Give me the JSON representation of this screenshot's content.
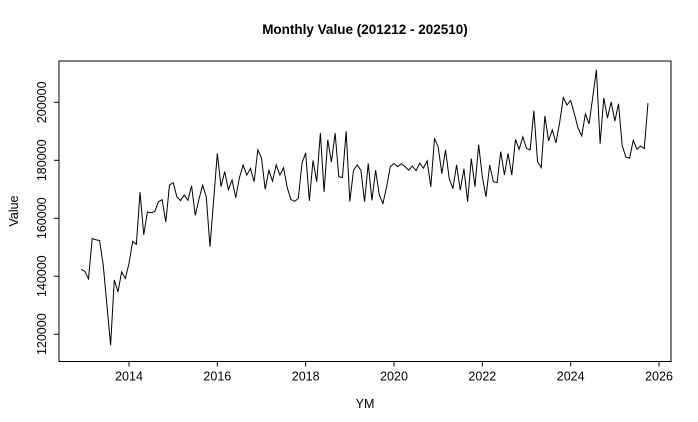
{
  "chart_data": {
    "type": "line",
    "title": "Monthly Value (201212 - 202510)",
    "xlabel": "YM",
    "ylabel": "Value",
    "start_ym": "201212",
    "end_ym": "202510",
    "x_ticks": [
      "2014",
      "2016",
      "2018",
      "2020",
      "2022",
      "2024",
      "2026"
    ],
    "y_ticks": [
      "120000",
      "140000",
      "160000",
      "180000",
      "200000"
    ],
    "xlim": [
      2012.42,
      2026.27
    ],
    "ylim": [
      110600,
      214300
    ],
    "grid": "off",
    "legend": "none",
    "line_color": "#000000",
    "background_color": "#ffffff",
    "values": [
      142400,
      141700,
      139100,
      153000,
      152600,
      152300,
      143800,
      130000,
      116200,
      138700,
      134600,
      141500,
      139200,
      144400,
      152000,
      151000,
      169000,
      154300,
      162200,
      161900,
      162300,
      165700,
      166400,
      158700,
      171500,
      172300,
      167400,
      166100,
      168000,
      166200,
      171200,
      161000,
      166500,
      171400,
      167400,
      150200,
      166300,
      182400,
      170900,
      176100,
      169900,
      173200,
      167100,
      174000,
      178400,
      174900,
      177200,
      172600,
      183600,
      180800,
      170000,
      176500,
      172800,
      178400,
      174900,
      177400,
      170500,
      166500,
      165800,
      166800,
      179000,
      182600,
      166000,
      180000,
      172600,
      189400,
      169100,
      187100,
      179400,
      189400,
      174300,
      174100,
      190000,
      165800,
      176600,
      178400,
      176600,
      165700,
      178900,
      166200,
      176600,
      168000,
      165100,
      170900,
      177800,
      178900,
      177800,
      178800,
      177800,
      176600,
      178000,
      176400,
      179000,
      177300,
      179800,
      170800,
      187600,
      184600,
      175400,
      183600,
      173700,
      170200,
      178400,
      169700,
      177100,
      165700,
      180600,
      170900,
      185400,
      174300,
      167400,
      178400,
      172600,
      172300,
      183000,
      174900,
      182400,
      174900,
      187200,
      183800,
      188100,
      184100,
      183600,
      197100,
      179500,
      177500,
      195300,
      186700,
      190500,
      186000,
      193000,
      201700,
      199100,
      200600,
      196100,
      191100,
      188400,
      196000,
      192600,
      201800,
      211200,
      185700,
      201500,
      194600,
      200100,
      193500,
      199500,
      185100,
      181100,
      180700,
      186900,
      183800,
      184900,
      184000,
      199700
    ]
  }
}
